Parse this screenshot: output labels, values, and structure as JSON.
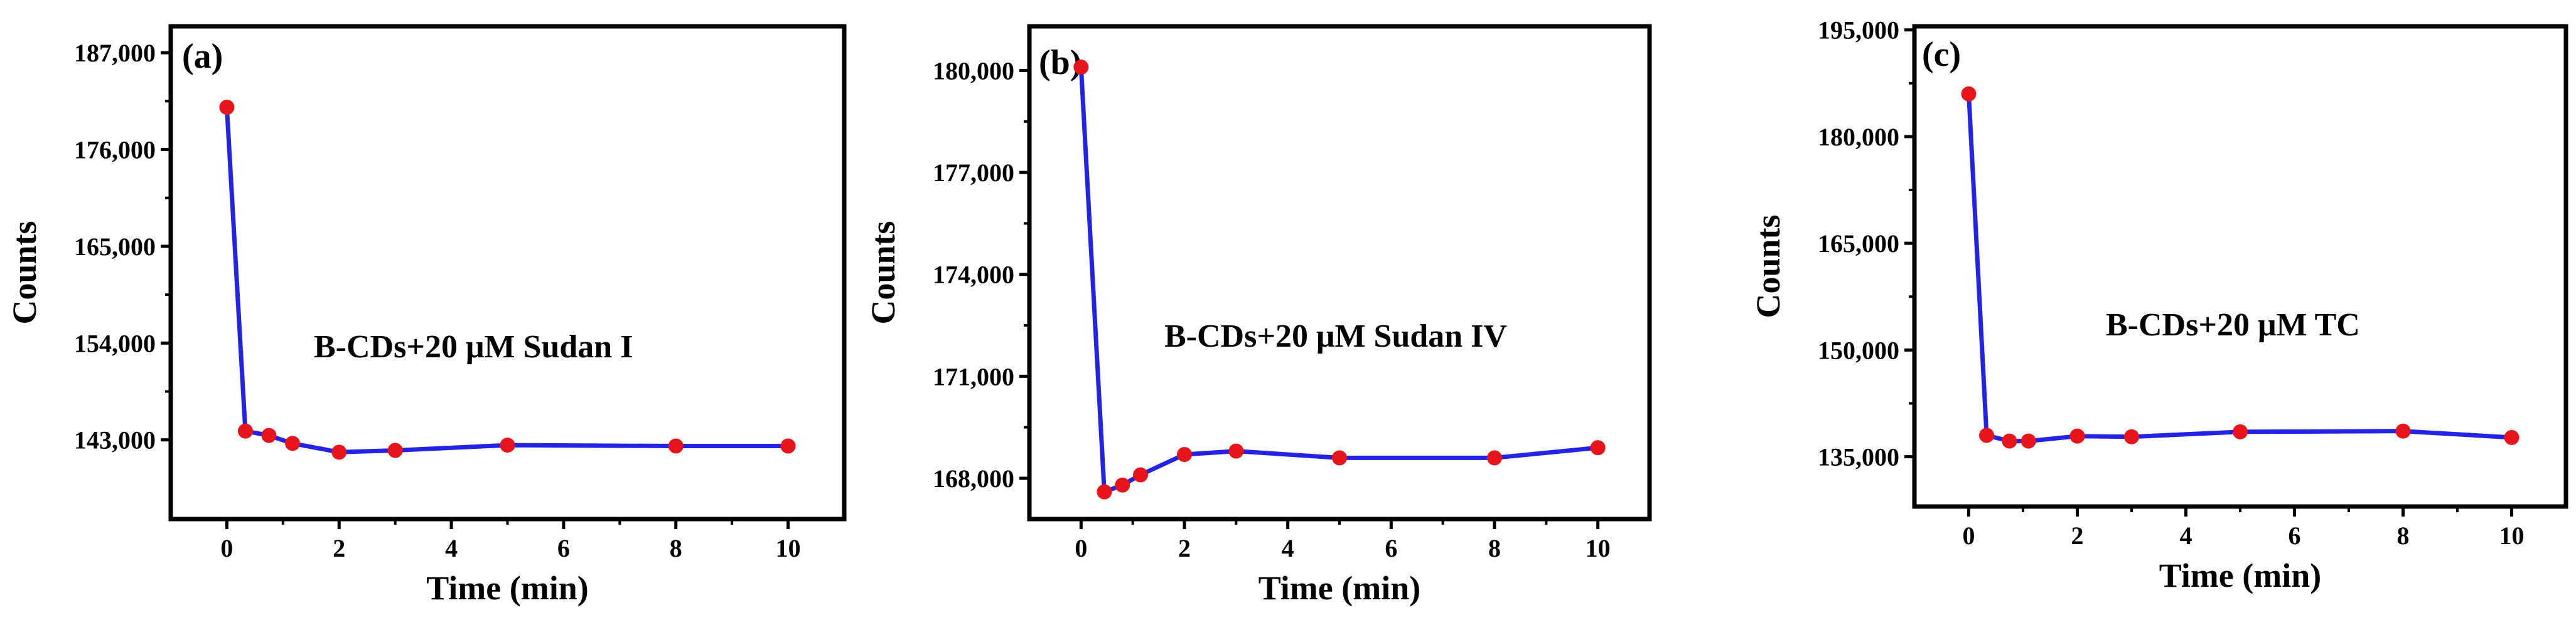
{
  "chart_data": [
    {
      "type": "line",
      "panel_label": "(a)",
      "annotation": "B-CDs+20 μM Sudan I",
      "xlabel": "Time (min)",
      "ylabel": "Counts",
      "xlim": [
        -1,
        11
      ],
      "ylim": [
        134000,
        190000
      ],
      "xticks": [
        0,
        2,
        4,
        6,
        8,
        10
      ],
      "xtick_labels": [
        "0",
        "2",
        "4",
        "6",
        "8",
        "10"
      ],
      "yticks": [
        143000,
        154000,
        165000,
        176000,
        187000
      ],
      "ytick_labels": [
        "143,000",
        "154,000",
        "165,000",
        "176,000",
        "187,000"
      ],
      "grid": false,
      "series": [
        {
          "name": "B-CDs+20 μM Sudan I",
          "line_color": "#2323e6",
          "marker_color": "#e8141c",
          "x": [
            0,
            0.33,
            0.75,
            1.17,
            2,
            3,
            5,
            8,
            10
          ],
          "y": [
            180800,
            144000,
            143500,
            142600,
            141600,
            141800,
            142400,
            142300,
            142300
          ]
        }
      ]
    },
    {
      "type": "line",
      "panel_label": "(b)",
      "annotation": "B-CDs+20 μM Sudan IV",
      "xlabel": "Time (min)",
      "ylabel": "Counts",
      "xlim": [
        -1,
        11
      ],
      "ylim": [
        166800,
        181300
      ],
      "xticks": [
        0,
        2,
        4,
        6,
        8,
        10
      ],
      "xtick_labels": [
        "0",
        "2",
        "4",
        "6",
        "8",
        "10"
      ],
      "yticks": [
        168000,
        171000,
        174000,
        177000,
        180000
      ],
      "ytick_labels": [
        "168,000",
        "171,000",
        "174,000",
        "177,000",
        "180,000"
      ],
      "grid": false,
      "series": [
        {
          "name": "B-CDs+20 μM Sudan IV",
          "line_color": "#2323e6",
          "marker_color": "#e8141c",
          "x": [
            0,
            0.45,
            0.8,
            1.15,
            2,
            3,
            5,
            8,
            10
          ],
          "y": [
            180100,
            167600,
            167800,
            168100,
            168700,
            168800,
            168600,
            168600,
            168900
          ]
        }
      ]
    },
    {
      "type": "line",
      "panel_label": "(c)",
      "annotation": "B-CDs+20 μM TC",
      "xlabel": "Time (min)",
      "ylabel": "Counts",
      "xlim": [
        -1,
        11
      ],
      "ylim": [
        128000,
        195500
      ],
      "xticks": [
        0,
        2,
        4,
        6,
        8,
        10
      ],
      "xtick_labels": [
        "0",
        "2",
        "4",
        "6",
        "8",
        "10"
      ],
      "yticks": [
        135000,
        150000,
        165000,
        180000,
        195000
      ],
      "ytick_labels": [
        "135,000",
        "150,000",
        "165,000",
        "180,000",
        "195,000"
      ],
      "grid": false,
      "series": [
        {
          "name": "B-CDs+20 μM TC",
          "line_color": "#2323e6",
          "marker_color": "#e8141c",
          "x": [
            0,
            0.33,
            0.75,
            1.1,
            2,
            3,
            5,
            8,
            10
          ],
          "y": [
            186000,
            138000,
            137200,
            137200,
            137900,
            137800,
            138500,
            138600,
            137700
          ]
        }
      ]
    }
  ]
}
